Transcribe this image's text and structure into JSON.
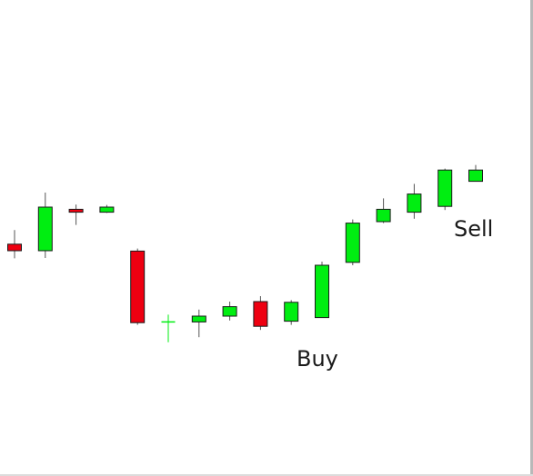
{
  "chart_data": {
    "type": "candlestick",
    "title": "",
    "xlabel": "",
    "ylabel": "",
    "grid": false,
    "axes_visible": false,
    "ylim": [
      0,
      100
    ],
    "colors": {
      "up": "#00ee11",
      "down": "#ee0011",
      "edge": "#1a1a1a"
    },
    "candles": [
      {
        "open": 57.8,
        "high": 61.7,
        "low": 53.9,
        "close": 56.0
      },
      {
        "open": 56.0,
        "high": 72.0,
        "low": 54.0,
        "close": 68.0
      },
      {
        "open": 67.4,
        "high": 68.7,
        "low": 63.1,
        "close": 66.6
      },
      {
        "open": 66.6,
        "high": 68.6,
        "low": 66.4,
        "close": 68.0
      },
      {
        "open": 55.9,
        "high": 56.6,
        "low": 35.6,
        "close": 36.2
      },
      {
        "open": 36.2,
        "high": 38.4,
        "low": 30.8,
        "close": 36.4
      },
      {
        "open": 36.4,
        "high": 39.8,
        "low": 32.2,
        "close": 38.0
      },
      {
        "open": 38.0,
        "high": 42.0,
        "low": 36.8,
        "close": 40.6
      },
      {
        "open": 42.0,
        "high": 43.5,
        "low": 34.2,
        "close": 35.2
      },
      {
        "open": 36.6,
        "high": 42.4,
        "low": 35.6,
        "close": 41.8
      },
      {
        "open": 37.6,
        "high": 53.0,
        "low": 37.6,
        "close": 52.0
      },
      {
        "open": 52.8,
        "high": 64.6,
        "low": 52.0,
        "close": 63.6
      },
      {
        "open": 64.0,
        "high": 70.4,
        "low": 63.6,
        "close": 67.4
      },
      {
        "open": 66.6,
        "high": 74.4,
        "low": 64.8,
        "close": 71.6
      },
      {
        "open": 68.2,
        "high": 78.6,
        "low": 67.2,
        "close": 78.2
      },
      {
        "open": 75.1,
        "high": 79.6,
        "low": 75.1,
        "close": 78.2
      }
    ],
    "annotations": [
      {
        "text": "Buy",
        "candle_index": 9,
        "position": "below"
      },
      {
        "text": "Sell",
        "candle_index": 15,
        "position": "below"
      }
    ]
  }
}
